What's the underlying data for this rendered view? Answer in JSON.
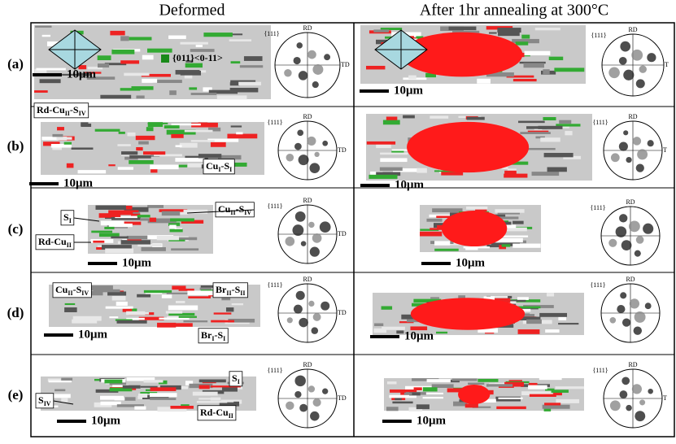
{
  "headers": [
    "Deformed",
    "After 1hr annealing at 300°C"
  ],
  "rows": [
    {
      "label": "(a)",
      "panels": [
        {
          "scale": "10μm",
          "legend": "{011}<0-11>",
          "pole": {
            "plane": "{111}",
            "rd": "RD",
            "td": "TD"
          },
          "annotations": []
        },
        {
          "scale": "10μm",
          "pole": {
            "plane": "{111}",
            "rd": "RD",
            "td": "T"
          },
          "annotations": []
        }
      ]
    },
    {
      "label": "(b)",
      "panels": [
        {
          "scale": "10μm",
          "pole": {
            "plane": "{111}",
            "rd": "RD",
            "td": "TD"
          },
          "annotations": [
            {
              "parts": [
                {
                  "text": "Rd-Cu"
                },
                {
                  "sub": "II"
                },
                {
                  "text": "-S"
                },
                {
                  "sub": "IV"
                }
              ]
            },
            {
              "parts": [
                {
                  "text": "Cu"
                },
                {
                  "sub": "I"
                },
                {
                  "text": "-S"
                },
                {
                  "sub": "I"
                }
              ]
            }
          ]
        },
        {
          "scale": "10μm",
          "pole": {
            "plane": "{111}",
            "rd": "RD",
            "td": "T"
          },
          "annotations": []
        }
      ]
    },
    {
      "label": "(c)",
      "panels": [
        {
          "scale": "10μm",
          "pole": {
            "plane": "{111}",
            "rd": "RD",
            "td": "TD"
          },
          "annotations": [
            {
              "parts": [
                {
                  "text": "S"
                },
                {
                  "sub": "I"
                }
              ]
            },
            {
              "parts": [
                {
                  "text": "Cu"
                },
                {
                  "sub": "II"
                },
                {
                  "text": "-S"
                },
                {
                  "sub": "IV"
                }
              ]
            },
            {
              "parts": [
                {
                  "text": "Rd-Cu"
                },
                {
                  "sub": "II"
                }
              ]
            }
          ]
        },
        {
          "scale": "10μm",
          "pole": {
            "plane": "{111}",
            "rd": "RD"
          },
          "annotations": []
        }
      ]
    },
    {
      "label": "(d)",
      "panels": [
        {
          "scale": "10μm",
          "pole": {
            "plane": "{111}",
            "rd": "RD",
            "td": "TD"
          },
          "annotations": [
            {
              "parts": [
                {
                  "text": "Cu"
                },
                {
                  "sub": "II"
                },
                {
                  "text": "-S"
                },
                {
                  "sub": "IV"
                }
              ]
            },
            {
              "parts": [
                {
                  "text": "Br"
                },
                {
                  "sub": "II"
                },
                {
                  "text": "-S"
                },
                {
                  "sub": "II"
                }
              ]
            },
            {
              "parts": [
                {
                  "text": "Br"
                },
                {
                  "sub": "I"
                },
                {
                  "text": "-S"
                },
                {
                  "sub": "I"
                }
              ]
            }
          ]
        },
        {
          "scale": "10μm",
          "pole": {
            "plane": "{111}",
            "rd": "RD"
          },
          "annotations": []
        }
      ]
    },
    {
      "label": "(e)",
      "panels": [
        {
          "scale": "10μm",
          "pole": {
            "plane": "{111}",
            "rd": "RD",
            "td": "TD"
          },
          "annotations": [
            {
              "parts": [
                {
                  "text": "S"
                },
                {
                  "sub": "I"
                }
              ]
            },
            {
              "parts": [
                {
                  "text": "S"
                },
                {
                  "sub": "IV"
                }
              ]
            },
            {
              "parts": [
                {
                  "text": "Rd-Cu"
                },
                {
                  "sub": "II"
                }
              ]
            }
          ]
        },
        {
          "scale": "10μm",
          "pole": {
            "plane": "{111}",
            "rd": "RD",
            "td": "T"
          },
          "annotations": []
        }
      ]
    }
  ]
}
